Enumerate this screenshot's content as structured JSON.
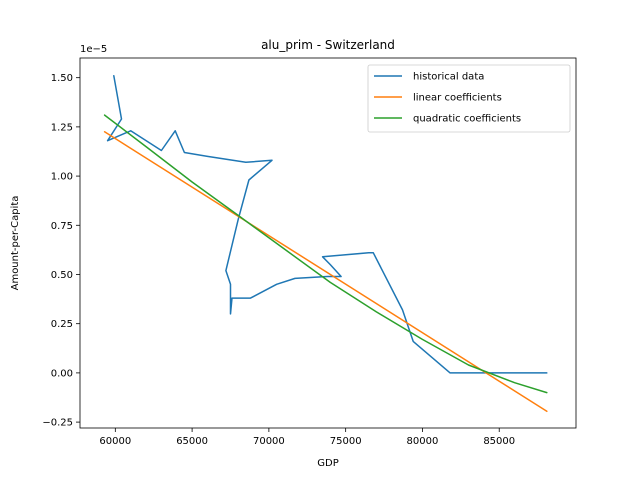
{
  "chart_data": {
    "type": "line",
    "title": "alu_prim - Switzerland",
    "xlabel": "GDP",
    "ylabel": "Amount-per-Capita",
    "y_offset_text": "1e−5",
    "xlim": [
      57700,
      90000
    ],
    "ylim": [
      -0.28,
      1.6
    ],
    "x_ticks": [
      60000,
      65000,
      70000,
      75000,
      80000,
      85000
    ],
    "x_tick_labels": [
      "60000",
      "65000",
      "70000",
      "75000",
      "80000",
      "85000"
    ],
    "y_ticks": [
      -0.25,
      0.0,
      0.25,
      0.5,
      0.75,
      1.0,
      1.25,
      1.5
    ],
    "y_tick_labels": [
      "−0.25",
      "0.00",
      "0.25",
      "0.50",
      "0.75",
      "1.00",
      "1.25",
      "1.50"
    ],
    "legend_position": "top-right",
    "grid": false,
    "series": [
      {
        "name": "historical data",
        "color": "#1f77b4",
        "points": [
          [
            59900,
            1.51
          ],
          [
            60400,
            1.29
          ],
          [
            59500,
            1.18
          ],
          [
            61000,
            1.23
          ],
          [
            63000,
            1.13
          ],
          [
            63900,
            1.23
          ],
          [
            64500,
            1.12
          ],
          [
            66000,
            1.1
          ],
          [
            68500,
            1.07
          ],
          [
            70200,
            1.08
          ],
          [
            68700,
            0.98
          ],
          [
            68000,
            0.78
          ],
          [
            67200,
            0.52
          ],
          [
            67500,
            0.45
          ],
          [
            67500,
            0.3
          ],
          [
            67600,
            0.38
          ],
          [
            68800,
            0.38
          ],
          [
            70500,
            0.45
          ],
          [
            71700,
            0.48
          ],
          [
            73800,
            0.49
          ],
          [
            74700,
            0.49
          ],
          [
            74000,
            0.55
          ],
          [
            73500,
            0.59
          ],
          [
            75000,
            0.6
          ],
          [
            76500,
            0.61
          ],
          [
            76800,
            0.61
          ],
          [
            78700,
            0.32
          ],
          [
            79400,
            0.16
          ],
          [
            81800,
            0.0
          ],
          [
            88100,
            0.0
          ]
        ]
      },
      {
        "name": "linear coefficients",
        "color": "#ff7f0e",
        "points": [
          [
            59300,
            1.225
          ],
          [
            88100,
            -0.195
          ]
        ]
      },
      {
        "name": "quadratic coefficients",
        "color": "#2ca02c",
        "points": [
          [
            59300,
            1.31
          ],
          [
            62000,
            1.15
          ],
          [
            65000,
            0.97
          ],
          [
            68000,
            0.8
          ],
          [
            71000,
            0.63
          ],
          [
            74000,
            0.46
          ],
          [
            77000,
            0.31
          ],
          [
            80000,
            0.17
          ],
          [
            83000,
            0.04
          ],
          [
            86000,
            -0.05
          ],
          [
            88100,
            -0.1
          ]
        ]
      }
    ]
  }
}
